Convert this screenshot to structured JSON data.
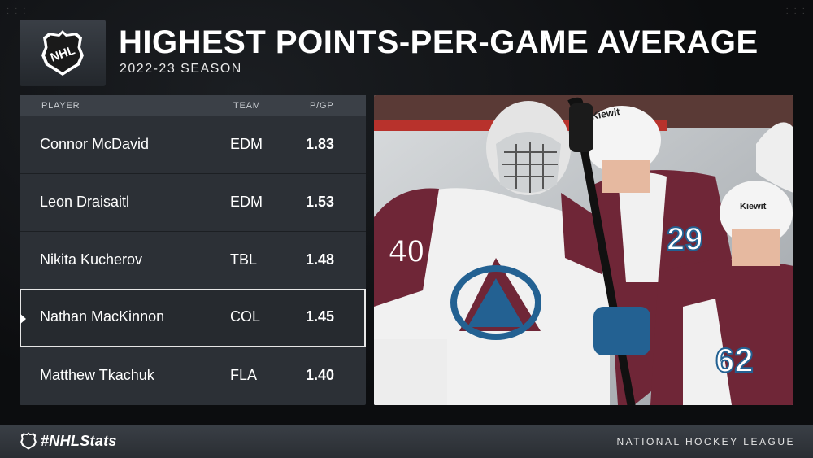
{
  "header": {
    "title": "HIGHEST POINTS-PER-GAME AVERAGE",
    "subtitle": "2022-23 SEASON",
    "logo_text": "NHL"
  },
  "table": {
    "columns": {
      "player": "PLAYER",
      "team": "TEAM",
      "ppg": "P/GP"
    },
    "rows": [
      {
        "player": "Connor McDavid",
        "team": "EDM",
        "ppg": "1.83"
      },
      {
        "player": "Leon Draisaitl",
        "team": "EDM",
        "ppg": "1.53"
      },
      {
        "player": "Nikita Kucherov",
        "team": "TBL",
        "ppg": "1.48"
      },
      {
        "player": "Nathan MacKinnon",
        "team": "COL",
        "ppg": "1.45",
        "highlighted": true
      },
      {
        "player": "Matthew Tkachuk",
        "team": "FLA",
        "ppg": "1.40"
      }
    ]
  },
  "photo": {
    "jersey_numbers": [
      "40",
      "29",
      "62"
    ],
    "sponsor_text": "Kiewit",
    "colors": {
      "burgundy": "#6f2637",
      "white": "#f2f2f2",
      "blue": "#236192",
      "silver": "#a2aaad"
    }
  },
  "footer": {
    "hashtag": "#NHLStats",
    "league_name": "NATIONAL HOCKEY LEAGUE"
  },
  "colors": {
    "background": "#0c0d0f",
    "panel": "#2c3036",
    "header_row": "#3b4047",
    "highlight_border": "#e6e6e6"
  }
}
